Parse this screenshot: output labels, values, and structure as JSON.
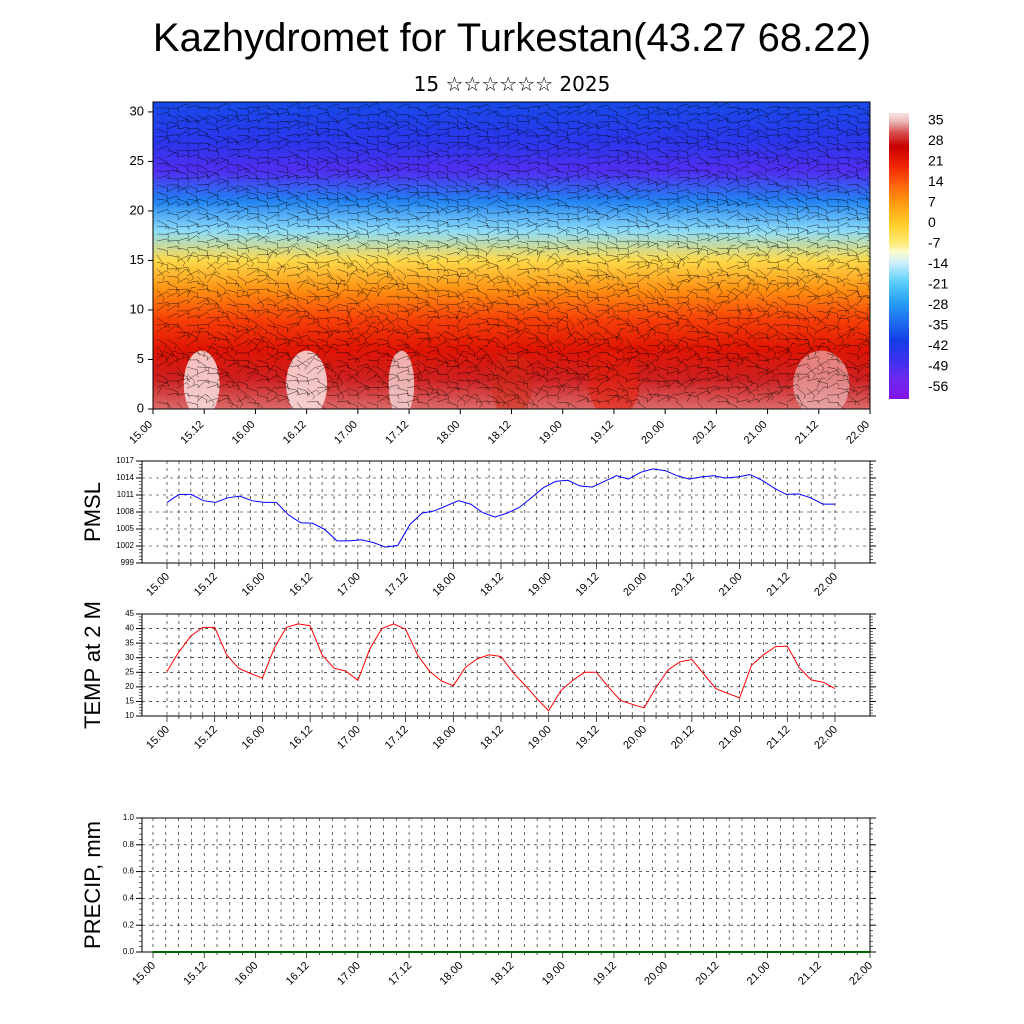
{
  "header": {
    "title": "Kazhydromet for Turkestan(43.27 68.22)",
    "subtitle": "15 ☆☆☆☆☆☆ 2025"
  },
  "time_ticks": [
    "15.00",
    "15.12",
    "16.00",
    "16.12",
    "17.00",
    "17.12",
    "18.00",
    "18.12",
    "19.00",
    "19.12",
    "20.00",
    "20.12",
    "21.00",
    "21.12",
    "22.00"
  ],
  "colors": {
    "pmsl_line": "#0000ff",
    "temp_line": "#ff0000",
    "precip_line": "#006400"
  },
  "chart_data": [
    {
      "type": "heatmap",
      "title": "",
      "xlabel": "",
      "ylabel": "",
      "x": [
        "15.00",
        "15.12",
        "16.00",
        "16.12",
        "17.00",
        "17.12",
        "18.00",
        "18.12",
        "19.00",
        "19.12",
        "20.00",
        "20.12",
        "21.00",
        "21.12",
        "22.00"
      ],
      "yticks": [
        "0",
        "5",
        "10",
        "15",
        "20",
        "25",
        "30"
      ],
      "ylim": [
        0,
        31
      ],
      "colorbar": {
        "labels": [
          "35",
          "28",
          "21",
          "14",
          "7",
          "0",
          "-7",
          "-14",
          "-21",
          "-28",
          "-35",
          "-42",
          "-49",
          "-56"
        ],
        "range": [
          -63,
          40
        ]
      },
      "profile": [
        {
          "h": 0,
          "t": 34
        },
        {
          "h": 3,
          "t": 30
        },
        {
          "h": 6,
          "t": 24
        },
        {
          "h": 9,
          "t": 18
        },
        {
          "h": 12,
          "t": 9
        },
        {
          "h": 15,
          "t": -3
        },
        {
          "h": 18,
          "t": -18
        },
        {
          "h": 21,
          "t": -32
        },
        {
          "h": 24,
          "t": -52
        },
        {
          "h": 27,
          "t": -46
        },
        {
          "h": 31,
          "t": -40
        }
      ],
      "overlay": "wind-barbs"
    },
    {
      "type": "line",
      "ylabel": "PMSL",
      "yticks": [
        "1017",
        "1014",
        "1011",
        "1008",
        "1005",
        "1002",
        "999"
      ],
      "ylim": [
        999,
        1017
      ],
      "xticks": [
        "15.00",
        "15.12",
        "16.00",
        "16.12",
        "17.00",
        "17.12",
        "18.00",
        "18.12",
        "19.00",
        "19.12",
        "20.00",
        "20.12",
        "21.00",
        "21.12",
        "22.00"
      ],
      "series": [
        {
          "values": [
            1009.7,
            1011.1,
            1011.1,
            1010.0,
            1009.7,
            1010.5,
            1010.8,
            1010.0,
            1009.7,
            1009.7,
            1007.5,
            1006.1,
            1006.0,
            1004.9,
            1002.9,
            1002.9,
            1003.1,
            1002.6,
            1001.8,
            1002.1,
            1005.8,
            1007.8,
            1008.2,
            1009.1,
            1010.0,
            1009.4,
            1007.9,
            1007.1,
            1007.8,
            1008.8,
            1010.5,
            1012.3,
            1013.4,
            1013.6,
            1012.6,
            1012.4,
            1013.4,
            1014.4,
            1013.8,
            1015.0,
            1015.6,
            1015.3,
            1014.4,
            1013.8,
            1014.2,
            1014.4,
            1014.0,
            1014.2,
            1014.6,
            1013.6,
            1012.2,
            1011.1,
            1011.2,
            1010.5,
            1009.4,
            1009.4
          ]
        }
      ]
    },
    {
      "type": "line",
      "ylabel": "TEMP at 2 M",
      "yticks": [
        "45",
        "40",
        "35",
        "30",
        "25",
        "20",
        "15",
        "10"
      ],
      "ylim": [
        10,
        45
      ],
      "xticks": [
        "15.00",
        "15.12",
        "16.00",
        "16.12",
        "17.00",
        "17.12",
        "18.00",
        "18.12",
        "19.00",
        "19.12",
        "20.00",
        "20.12",
        "21.00",
        "21.12",
        "22.00"
      ],
      "series": [
        {
          "values": [
            25.3,
            32.0,
            37.5,
            40.4,
            40.4,
            31.0,
            26.4,
            24.6,
            23.0,
            33.4,
            40.4,
            41.6,
            41.0,
            31.0,
            26.4,
            25.4,
            22.2,
            33.0,
            40.0,
            41.6,
            39.8,
            31.0,
            25.4,
            22.0,
            20.4,
            26.6,
            29.6,
            31.0,
            30.4,
            25.0,
            20.6,
            16.0,
            11.8,
            18.6,
            22.2,
            25.0,
            25.0,
            20.0,
            15.4,
            14.0,
            12.8,
            19.8,
            25.8,
            28.6,
            29.4,
            24.4,
            19.4,
            17.8,
            16.2,
            27.4,
            31.0,
            33.8,
            34.0,
            26.6,
            22.4,
            21.6,
            19.4
          ]
        }
      ]
    },
    {
      "type": "line",
      "ylabel": "PRECIP, mm",
      "yticks": [
        "1.0",
        "0.8",
        "0.6",
        "0.4",
        "0.2",
        "0.0"
      ],
      "ylim": [
        0,
        1
      ],
      "xticks": [
        "15.00",
        "15.12",
        "16.00",
        "16.12",
        "17.00",
        "17.12",
        "18.00",
        "18.12",
        "19.00",
        "19.12",
        "20.00",
        "20.12",
        "21.00",
        "21.12",
        "22.00"
      ],
      "series": [
        {
          "values": [
            0,
            0
          ]
        }
      ]
    }
  ]
}
